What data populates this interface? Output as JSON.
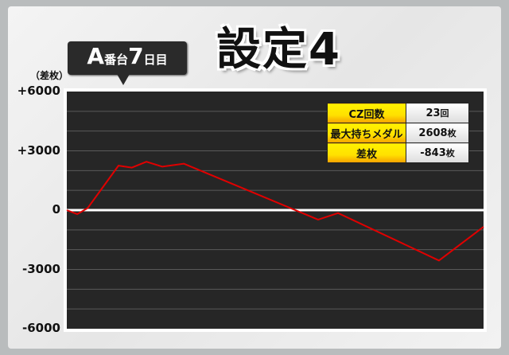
{
  "header": {
    "machine_letter": "A",
    "machine_suffix": "番台",
    "day_num": "7",
    "day_suffix": "日目",
    "title": "設定4"
  },
  "info": [
    {
      "label": "CZ回数",
      "value": "23",
      "unit": "回"
    },
    {
      "label": "最大持ちメダル",
      "value": "2608",
      "unit": "枚"
    },
    {
      "label": "差枚",
      "value": "-843",
      "unit": "枚"
    }
  ],
  "chart_data": {
    "type": "line",
    "ylabel": "（差枚）",
    "ylim": [
      -6000,
      6000
    ],
    "yticks": [
      "+6000",
      "+3000",
      "0",
      "-3000",
      "-6000"
    ],
    "ytick_values": [
      6000,
      3000,
      0,
      -3000,
      -6000
    ],
    "grid": true,
    "line_color": "#e00000",
    "x": [
      0,
      2.5,
      5,
      12.4,
      15.6,
      19.1,
      22.9,
      28.1,
      60.3,
      65.1,
      89.3,
      100
    ],
    "values": [
      0,
      -200,
      100,
      2250,
      2150,
      2450,
      2200,
      2350,
      -480,
      -150,
      -2550,
      -843
    ]
  }
}
